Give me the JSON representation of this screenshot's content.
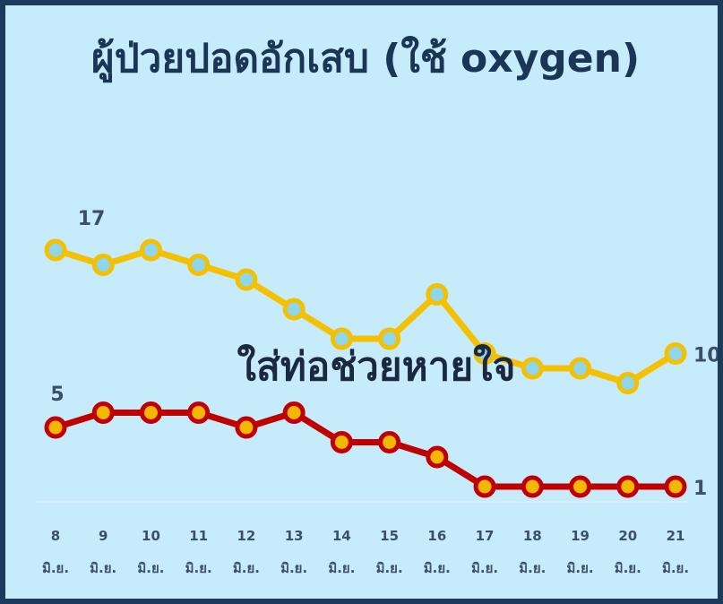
{
  "chart_data": {
    "type": "line",
    "title": "ผู้ป่วยปอดอักเสบ (ใช้ oxygen)",
    "categories": [
      "8 มิ.ย.",
      "9 มิ.ย.",
      "10 มิ.ย.",
      "11 มิ.ย.",
      "12 มิ.ย.",
      "13 มิ.ย.",
      "14 มิ.ย.",
      "15 มิ.ย.",
      "16 มิ.ย.",
      "17 มิ.ย.",
      "18 มิ.ย.",
      "19 มิ.ย.",
      "20 มิ.ย.",
      "21 มิ.ย."
    ],
    "series": [
      {
        "color": "#f5c000",
        "marker_fill": "#8fd6ea",
        "values": [
          17,
          16,
          17,
          16,
          15,
          13,
          11,
          11,
          14,
          10,
          9,
          9,
          8,
          10
        ]
      },
      {
        "name": "ใส่ท่อช่วยหายใจ",
        "color": "#c00000",
        "marker_fill": "#f5b800",
        "values": [
          5,
          6,
          6,
          6,
          5,
          6,
          4,
          4,
          3,
          1,
          1,
          1,
          1,
          1
        ]
      }
    ]
  }
}
